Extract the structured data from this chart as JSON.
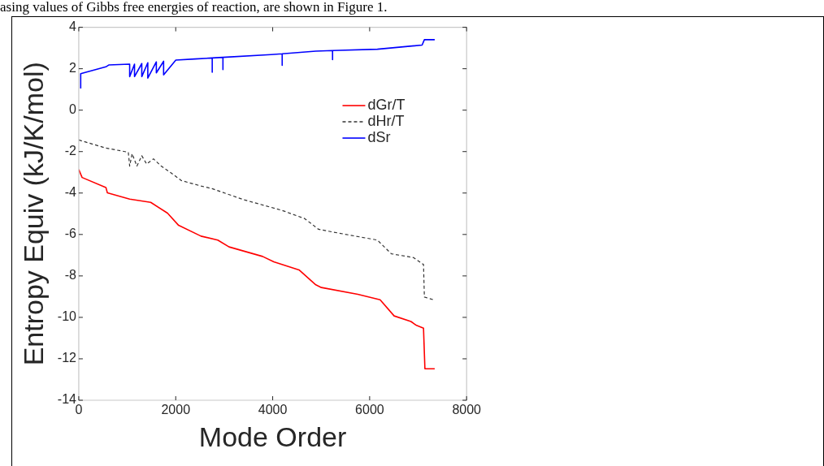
{
  "chart_data": {
    "type": "line",
    "xlabel": "Mode Order",
    "ylabel": "Entropy Equiv (kJ/K/mol)",
    "annotations": [
      "asing values of Gibbs free energies of reaction, are shown in Figure 1."
    ],
    "xlim": [
      0,
      8000
    ],
    "ylim": [
      -14,
      4
    ],
    "xticks": [
      0,
      2000,
      4000,
      6000,
      8000
    ],
    "yticks": [
      -14,
      -12,
      -10,
      -8,
      -6,
      -4,
      -2,
      0,
      2,
      4
    ],
    "grid": false,
    "legend": "top right",
    "marker": "none",
    "series": [
      {
        "name": "dGr/T",
        "color": "#ff0000",
        "line_style": "solid",
        "x": [
          0,
          69,
          560,
          590,
          1050,
          1484,
          1830,
          2060,
          2522,
          2868,
          3100,
          3792,
          4023,
          4543,
          4889,
          5004,
          5755,
          6216,
          6505,
          6851,
          6967,
          7111,
          7140,
          7342
        ],
        "values": [
          -2.86,
          -3.25,
          -3.73,
          -3.99,
          -4.29,
          -4.45,
          -4.97,
          -5.56,
          -6.08,
          -6.27,
          -6.6,
          -7.06,
          -7.32,
          -7.71,
          -8.43,
          -8.56,
          -8.89,
          -9.15,
          -9.93,
          -10.2,
          -10.39,
          -10.52,
          -12.48,
          -12.48
        ]
      },
      {
        "name": "dHr/T",
        "color": "#333333",
        "line_style": "dashed",
        "x": [
          0,
          560,
          1022,
          1050,
          1100,
          1200,
          1300,
          1400,
          1541,
          1700,
          1887,
          2118,
          2522,
          2753,
          3387,
          4196,
          4658,
          4946,
          5235,
          6159,
          6447,
          6910,
          7111,
          7129,
          7313
        ],
        "values": [
          -1.44,
          -1.83,
          -2.03,
          -2.7,
          -2.1,
          -2.7,
          -2.2,
          -2.6,
          -2.35,
          -2.7,
          -3.0,
          -3.4,
          -3.66,
          -3.79,
          -4.31,
          -4.84,
          -5.23,
          -5.75,
          -5.88,
          -6.27,
          -6.93,
          -7.12,
          -7.45,
          -9.02,
          -9.15
        ]
      },
      {
        "name": "dSr",
        "color": "#0000ff",
        "line_style": "solid",
        "x": [
          40,
          40,
          560,
          618,
          1050,
          1050,
          1150,
          1150,
          1300,
          1300,
          1424,
          1424,
          1600,
          1600,
          1750,
          1750,
          2002,
          2400,
          2753,
          2753,
          2753,
          2974,
          2974,
          2974,
          3965,
          4196,
          4196,
          4196,
          4889,
          5235,
          5235,
          5235,
          6159,
          7082,
          7129,
          7342
        ],
        "values": [
          1.05,
          1.76,
          2.09,
          2.18,
          2.22,
          1.62,
          2.22,
          1.62,
          2.25,
          1.62,
          2.29,
          1.55,
          2.33,
          1.8,
          2.36,
          1.7,
          2.42,
          2.47,
          2.52,
          1.83,
          2.52,
          2.55,
          1.96,
          2.55,
          2.68,
          2.72,
          2.16,
          2.72,
          2.85,
          2.88,
          2.44,
          2.88,
          2.94,
          3.14,
          3.4,
          3.4
        ]
      }
    ]
  }
}
